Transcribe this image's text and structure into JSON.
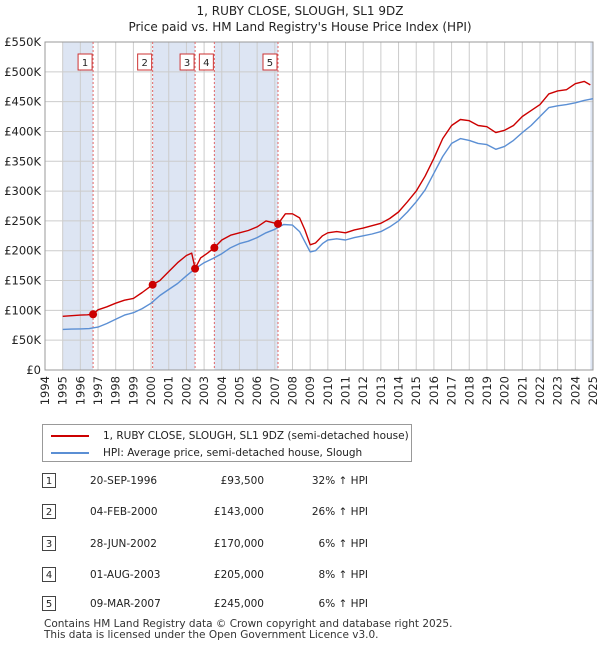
{
  "title": {
    "line1": "1, RUBY CLOSE, SLOUGH, SL1 9DZ",
    "line2": "Price paid vs. HM Land Registry's House Price Index (HPI)"
  },
  "colors": {
    "property": "#cc0000",
    "hpi": "#5b8fd4",
    "band": "#dde5f3",
    "grid": "#cccccc",
    "vline": "#e06666"
  },
  "chart_data": {
    "type": "line",
    "title": "1, RUBY CLOSE, SLOUGH, SL1 9DZ — Price paid vs. HM Land Registry's House Price Index (HPI)",
    "xlim": [
      1994,
      2025
    ],
    "ylim": [
      0,
      550000
    ],
    "yticks": [
      0,
      50000,
      100000,
      150000,
      200000,
      250000,
      300000,
      350000,
      400000,
      450000,
      500000,
      550000
    ],
    "ytick_labels": [
      "£0",
      "£50K",
      "£100K",
      "£150K",
      "£200K",
      "£250K",
      "£300K",
      "£350K",
      "£400K",
      "£450K",
      "£500K",
      "£550K"
    ],
    "xticks": [
      1994,
      1995,
      1996,
      1997,
      1998,
      1999,
      2000,
      2001,
      2002,
      2003,
      2004,
      2005,
      2006,
      2007,
      2008,
      2009,
      2010,
      2011,
      2012,
      2013,
      2014,
      2015,
      2016,
      2017,
      2018,
      2019,
      2020,
      2021,
      2022,
      2023,
      2024,
      2025
    ],
    "shaded_bands": [
      [
        1995,
        1996.72
      ],
      [
        2000.09,
        2002.49
      ],
      [
        2003.58,
        2007.18
      ],
      [
        2024.85,
        2025
      ]
    ],
    "series": [
      {
        "name": "1, RUBY CLOSE, SLOUGH, SL1 9DZ (semi-detached house)",
        "color": "#cc0000",
        "x": [
          1995.0,
          1995.5,
          1996.0,
          1996.4,
          1996.72,
          1997.0,
          1997.5,
          1998.0,
          1998.5,
          1999.0,
          1999.5,
          2000.09,
          2000.5,
          2001.0,
          2001.5,
          2002.0,
          2002.3,
          2002.49,
          2002.8,
          2003.2,
          2003.58,
          2004.0,
          2004.5,
          2005.0,
          2005.5,
          2006.0,
          2006.5,
          2007.18,
          2007.6,
          2008.0,
          2008.4,
          2008.7,
          2009.0,
          2009.3,
          2009.7,
          2010.0,
          2010.5,
          2011.0,
          2011.5,
          2012.0,
          2012.5,
          2013.0,
          2013.5,
          2014.0,
          2014.5,
          2015.0,
          2015.5,
          2016.0,
          2016.5,
          2017.0,
          2017.5,
          2018.0,
          2018.5,
          2019.0,
          2019.5,
          2020.0,
          2020.5,
          2021.0,
          2021.5,
          2022.0,
          2022.5,
          2023.0,
          2023.5,
          2024.0,
          2024.5,
          2024.85
        ],
        "values": [
          90000,
          91000,
          92000,
          92500,
          93500,
          101000,
          106000,
          112000,
          117000,
          120000,
          130000,
          143000,
          150000,
          165000,
          180000,
          192000,
          196000,
          170000,
          188000,
          196000,
          205000,
          218000,
          226000,
          230000,
          234000,
          240000,
          250000,
          245000,
          262000,
          262000,
          255000,
          235000,
          210000,
          213000,
          225000,
          230000,
          232000,
          230000,
          235000,
          238000,
          242000,
          246000,
          254000,
          265000,
          282000,
          300000,
          325000,
          355000,
          388000,
          410000,
          420000,
          418000,
          410000,
          408000,
          398000,
          402000,
          410000,
          425000,
          435000,
          445000,
          463000,
          468000,
          470000,
          480000,
          484000,
          478000
        ]
      },
      {
        "name": "HPI: Average price, semi-detached house, Slough",
        "color": "#5b8fd4",
        "x": [
          1995.0,
          1995.5,
          1996.0,
          1996.5,
          1997.0,
          1997.5,
          1998.0,
          1998.5,
          1999.0,
          1999.5,
          2000.0,
          2000.5,
          2001.0,
          2001.5,
          2002.0,
          2002.5,
          2003.0,
          2003.5,
          2004.0,
          2004.5,
          2005.0,
          2005.5,
          2006.0,
          2006.5,
          2007.0,
          2007.5,
          2008.0,
          2008.4,
          2008.7,
          2009.0,
          2009.3,
          2009.7,
          2010.0,
          2010.5,
          2011.0,
          2011.5,
          2012.0,
          2012.5,
          2013.0,
          2013.5,
          2014.0,
          2014.5,
          2015.0,
          2015.5,
          2016.0,
          2016.5,
          2017.0,
          2017.5,
          2018.0,
          2018.5,
          2019.0,
          2019.5,
          2020.0,
          2020.5,
          2021.0,
          2021.5,
          2022.0,
          2022.5,
          2023.0,
          2023.5,
          2024.0,
          2024.5,
          2025.0
        ],
        "values": [
          68000,
          68500,
          69000,
          69500,
          72000,
          78000,
          85000,
          92000,
          96000,
          103000,
          112000,
          125000,
          135000,
          145000,
          158000,
          170000,
          180000,
          187000,
          195000,
          205000,
          212000,
          216000,
          222000,
          230000,
          236000,
          244000,
          243000,
          232000,
          215000,
          198000,
          200000,
          212000,
          218000,
          220000,
          218000,
          222000,
          225000,
          228000,
          232000,
          240000,
          250000,
          265000,
          282000,
          302000,
          330000,
          358000,
          380000,
          388000,
          385000,
          380000,
          378000,
          370000,
          375000,
          385000,
          398000,
          410000,
          425000,
          440000,
          443000,
          445000,
          448000,
          452000,
          455000
        ]
      }
    ],
    "sales": [
      {
        "n": "1",
        "x": 1996.72,
        "price": 93500
      },
      {
        "n": "2",
        "x": 2000.09,
        "price": 143000
      },
      {
        "n": "3",
        "x": 2002.49,
        "price": 170000
      },
      {
        "n": "4",
        "x": 2003.58,
        "price": 205000
      },
      {
        "n": "5",
        "x": 2007.18,
        "price": 245000
      }
    ]
  },
  "legend": {
    "property_label": "1, RUBY CLOSE, SLOUGH, SL1 9DZ (semi-detached house)",
    "hpi_label": "HPI: Average price, semi-detached house, Slough"
  },
  "transactions": [
    {
      "num": "1",
      "date": "20-SEP-1996",
      "price": "£93,500",
      "hpi": "32% ↑ HPI"
    },
    {
      "num": "2",
      "date": "04-FEB-2000",
      "price": "£143,000",
      "hpi": "26% ↑ HPI"
    },
    {
      "num": "3",
      "date": "28-JUN-2002",
      "price": "£170,000",
      "hpi": "6% ↑ HPI"
    },
    {
      "num": "4",
      "date": "01-AUG-2003",
      "price": "£205,000",
      "hpi": "8% ↑ HPI"
    },
    {
      "num": "5",
      "date": "09-MAR-2007",
      "price": "£245,000",
      "hpi": "6% ↑ HPI"
    }
  ],
  "footer": {
    "line1": "Contains HM Land Registry data © Crown copyright and database right 2025.",
    "line2": "This data is licensed under the Open Government Licence v3.0."
  }
}
